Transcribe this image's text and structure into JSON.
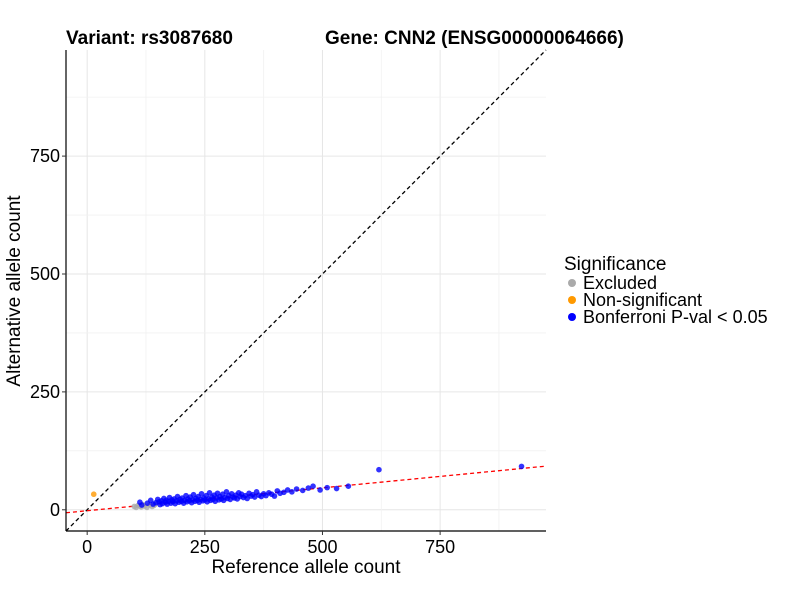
{
  "chart_data": {
    "type": "scatter",
    "title_left": "Variant: rs3087680",
    "title_right": "Gene: CNN2 (ENSG00000064666)",
    "xlabel": "Reference allele count",
    "ylabel": "Alternative allele count",
    "xlim": [
      -45,
      975
    ],
    "ylim": [
      -45,
      975
    ],
    "xticks": [
      0,
      250,
      500,
      750
    ],
    "yticks": [
      0,
      250,
      500,
      750
    ],
    "xtick_labels": [
      "0",
      "250",
      "500",
      "750"
    ],
    "ytick_labels": [
      "0",
      "250",
      "500",
      "750"
    ],
    "grid": true,
    "reference_lines": [
      {
        "style": "dashed",
        "color": "#000000",
        "slope": 1,
        "intercept": 0
      },
      {
        "style": "dashed",
        "color": "#ff0000",
        "slope": 0.097,
        "intercept": -2
      }
    ],
    "legend": {
      "title": "Significance",
      "placement": "right",
      "entries": [
        {
          "label": "Excluded",
          "color": "#aaaaaa"
        },
        {
          "label": "Non-significant",
          "color": "#ff9900"
        },
        {
          "label": "Bonferroni P-val < 0.05",
          "color": "#0000ff"
        }
      ]
    },
    "series": [
      {
        "name": "Excluded",
        "color": "#aaaaaa",
        "points": [
          [
            100,
            7
          ],
          [
            108,
            9
          ],
          [
            115,
            6
          ],
          [
            122,
            8
          ],
          [
            127,
            5
          ],
          [
            133,
            10
          ],
          [
            138,
            7
          ],
          [
            142,
            9
          ],
          [
            118,
            11
          ],
          [
            104,
            5
          ],
          [
            145,
            12
          ],
          [
            112,
            8
          ]
        ]
      },
      {
        "name": "Non-significant",
        "color": "#ff9900",
        "points": [
          [
            14,
            33
          ]
        ]
      },
      {
        "name": "Bonferroni P-val < 0.05",
        "color": "#0000ff",
        "points": [
          [
            112,
            16
          ],
          [
            116,
            10
          ],
          [
            128,
            14
          ],
          [
            135,
            20
          ],
          [
            140,
            12
          ],
          [
            146,
            15
          ],
          [
            150,
            22
          ],
          [
            153,
            17
          ],
          [
            155,
            11
          ],
          [
            158,
            19
          ],
          [
            160,
            13
          ],
          [
            163,
            24
          ],
          [
            166,
            16
          ],
          [
            168,
            20
          ],
          [
            170,
            12
          ],
          [
            173,
            18
          ],
          [
            175,
            26
          ],
          [
            178,
            14
          ],
          [
            180,
            21
          ],
          [
            182,
            17
          ],
          [
            185,
            23
          ],
          [
            187,
            13
          ],
          [
            190,
            19
          ],
          [
            192,
            28
          ],
          [
            195,
            16
          ],
          [
            197,
            22
          ],
          [
            200,
            18
          ],
          [
            202,
            25
          ],
          [
            205,
            14
          ],
          [
            207,
            20
          ],
          [
            210,
            30
          ],
          [
            212,
            17
          ],
          [
            214,
            23
          ],
          [
            217,
            19
          ],
          [
            219,
            27
          ],
          [
            222,
            15
          ],
          [
            224,
            21
          ],
          [
            226,
            32
          ],
          [
            229,
            18
          ],
          [
            231,
            24
          ],
          [
            234,
            20
          ],
          [
            236,
            28
          ],
          [
            238,
            16
          ],
          [
            241,
            22
          ],
          [
            243,
            34
          ],
          [
            246,
            19
          ],
          [
            248,
            25
          ],
          [
            250,
            21
          ],
          [
            253,
            30
          ],
          [
            255,
            17
          ],
          [
            258,
            23
          ],
          [
            260,
            36
          ],
          [
            262,
            20
          ],
          [
            265,
            27
          ],
          [
            267,
            22
          ],
          [
            270,
            31
          ],
          [
            272,
            18
          ],
          [
            275,
            25
          ],
          [
            277,
            35
          ],
          [
            280,
            21
          ],
          [
            282,
            28
          ],
          [
            285,
            23
          ],
          [
            288,
            33
          ],
          [
            290,
            20
          ],
          [
            293,
            26
          ],
          [
            296,
            38
          ],
          [
            298,
            24
          ],
          [
            301,
            30
          ],
          [
            304,
            22
          ],
          [
            307,
            34
          ],
          [
            310,
            27
          ],
          [
            313,
            25
          ],
          [
            316,
            31
          ],
          [
            319,
            23
          ],
          [
            322,
            36
          ],
          [
            325,
            28
          ],
          [
            328,
            33
          ],
          [
            332,
            26
          ],
          [
            336,
            30
          ],
          [
            340,
            24
          ],
          [
            344,
            35
          ],
          [
            348,
            29
          ],
          [
            352,
            32
          ],
          [
            356,
            27
          ],
          [
            360,
            38
          ],
          [
            365,
            31
          ],
          [
            370,
            28
          ],
          [
            375,
            34
          ],
          [
            380,
            30
          ],
          [
            386,
            36
          ],
          [
            392,
            33
          ],
          [
            398,
            29
          ],
          [
            404,
            40
          ],
          [
            410,
            35
          ],
          [
            418,
            37
          ],
          [
            426,
            42
          ],
          [
            435,
            38
          ],
          [
            445,
            44
          ],
          [
            458,
            41
          ],
          [
            470,
            46
          ],
          [
            480,
            50
          ],
          [
            495,
            42
          ],
          [
            510,
            47
          ],
          [
            530,
            45
          ],
          [
            555,
            50
          ],
          [
            620,
            85
          ],
          [
            923,
            92
          ]
        ]
      }
    ]
  }
}
